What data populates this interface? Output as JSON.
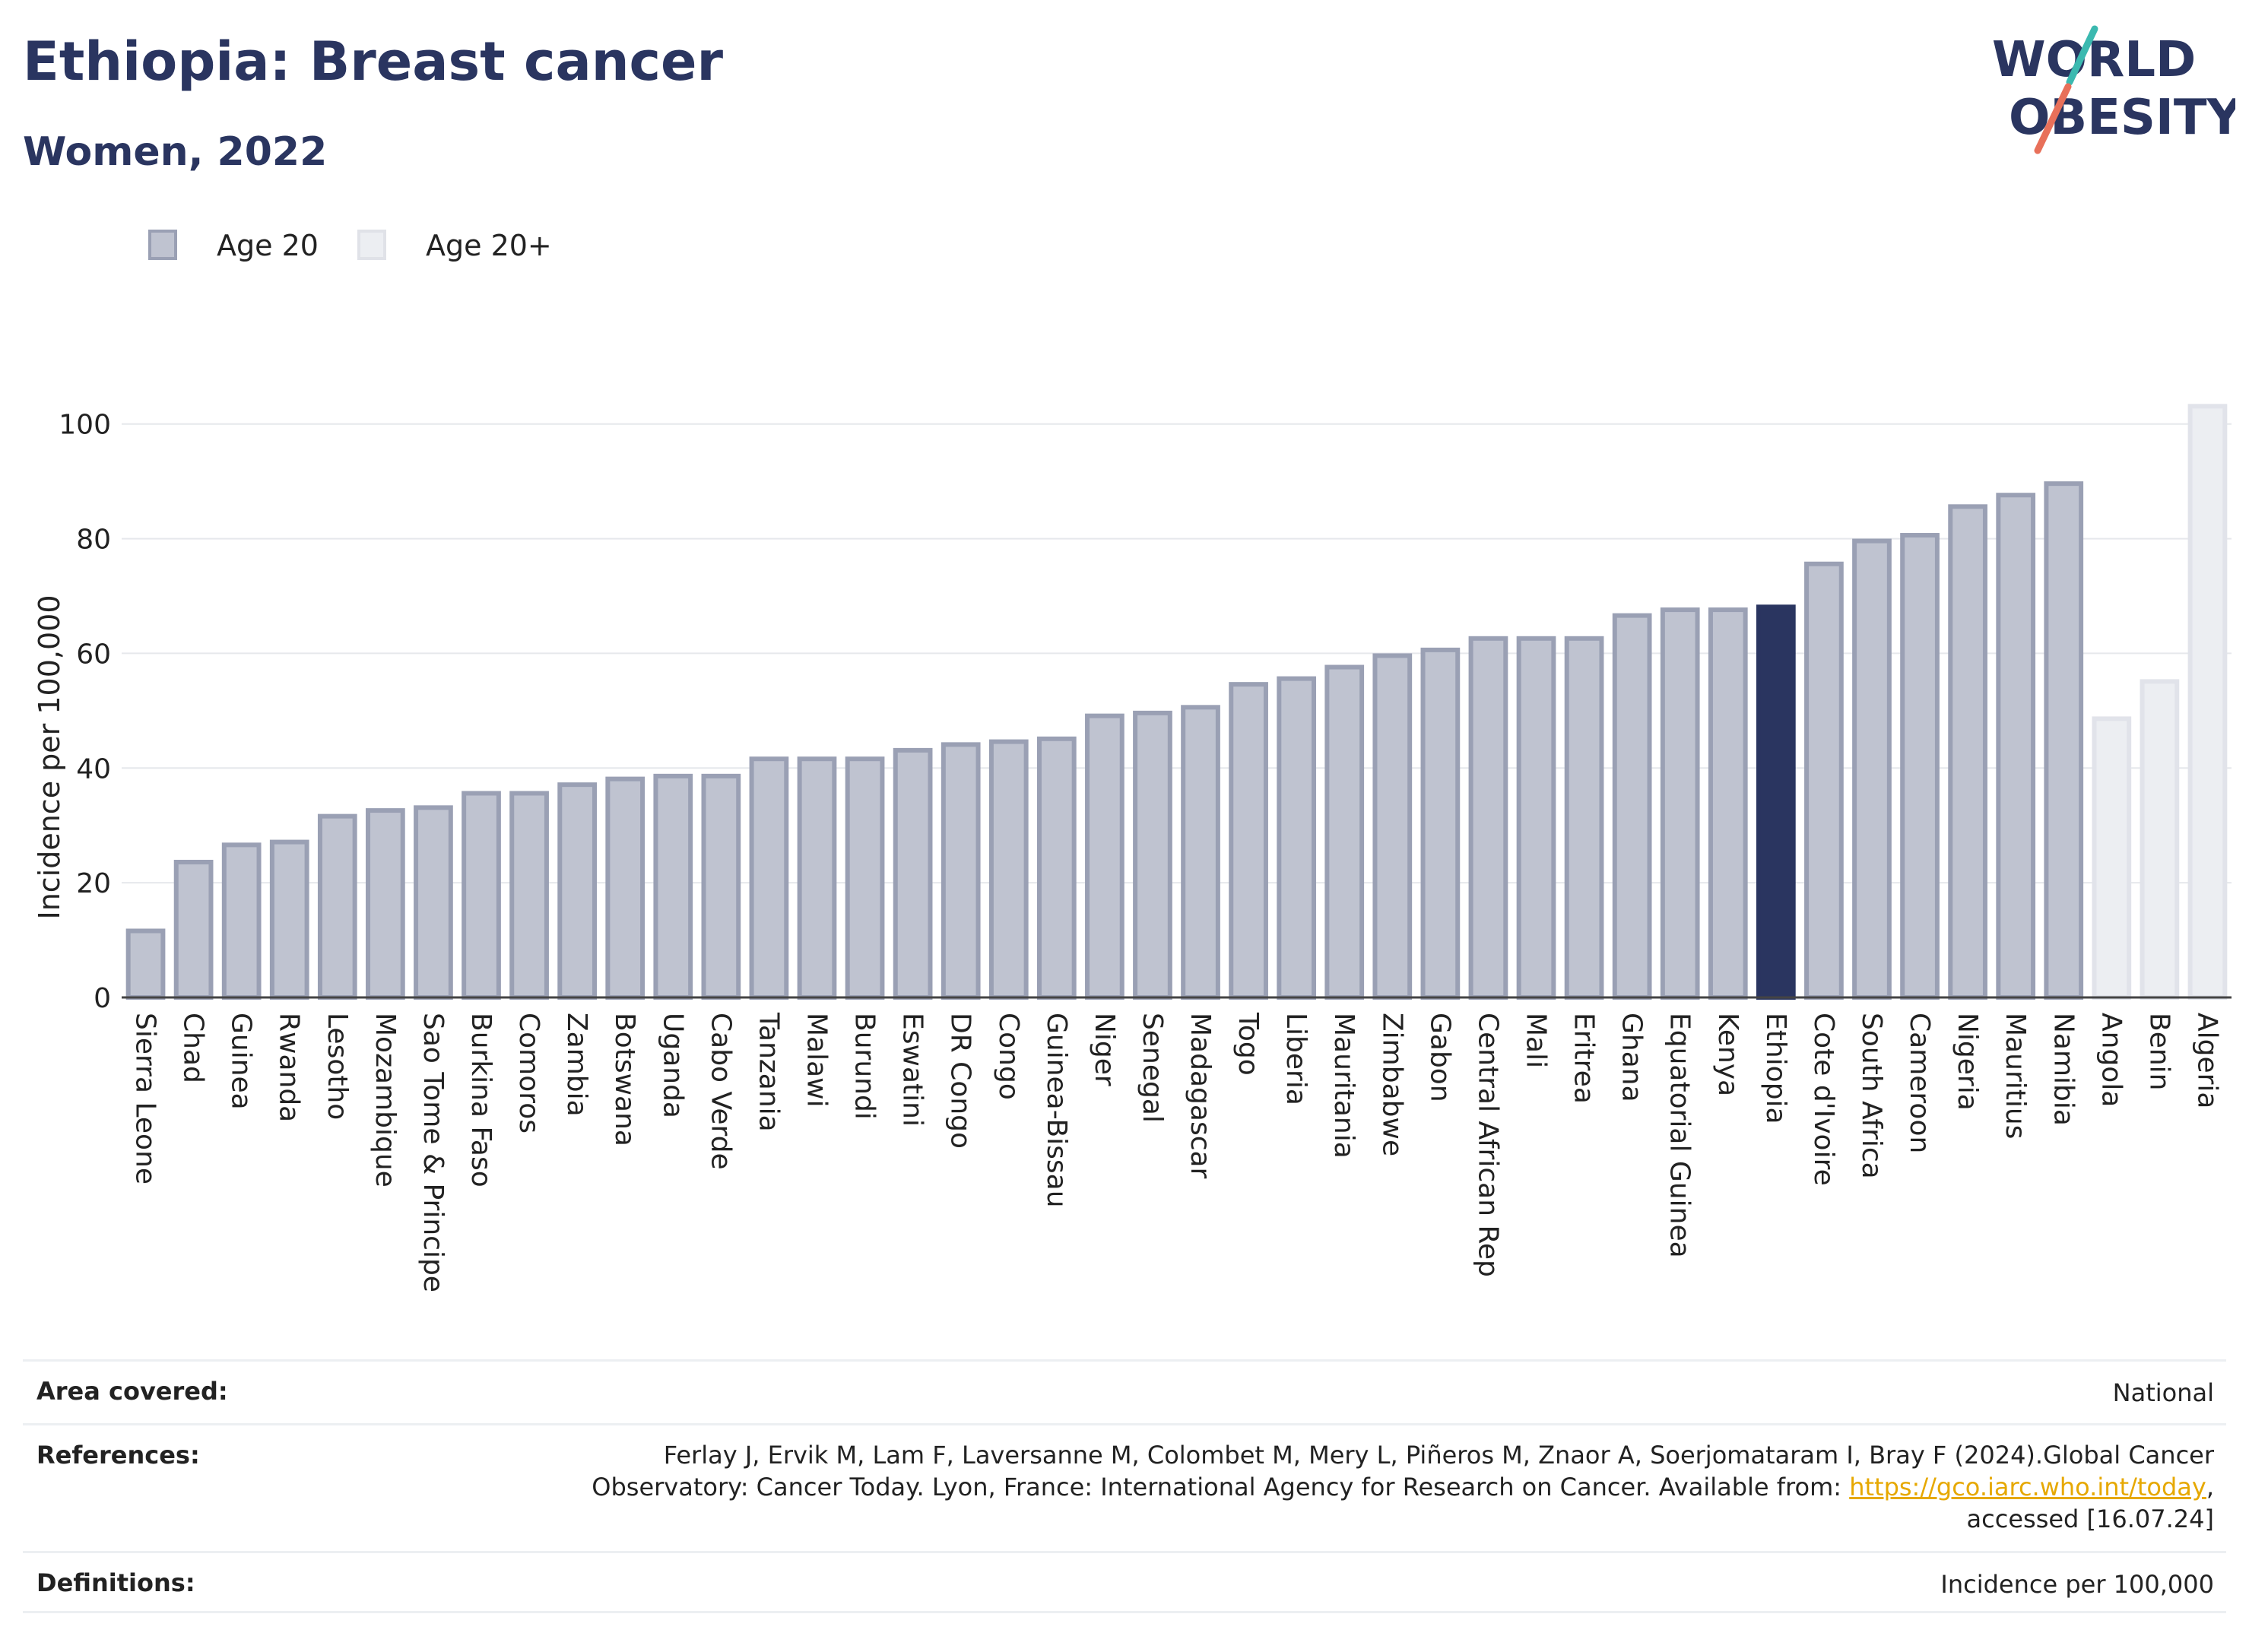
{
  "header": {
    "title": "Ethiopia: Breast cancer",
    "subtitle": "Women, 2022"
  },
  "logo": {
    "line1": "WORLD",
    "line2": "OBESITY",
    "accent_colors": [
      "#3bb9b0",
      "#e8705a"
    ]
  },
  "legend": [
    {
      "label": "Age 20",
      "color": "#bfc3d0",
      "border": "#9aa0b4"
    },
    {
      "label": "Age 20+",
      "color": "#eceef2",
      "border": "#e0e2e8"
    }
  ],
  "chart_data": {
    "type": "bar",
    "ylabel": "Incidence per 100,000",
    "xlabel": "",
    "ylim": [
      0,
      105
    ],
    "yticks": [
      0,
      20,
      40,
      60,
      80,
      100
    ],
    "grid": true,
    "legend_position": "top-left",
    "highlight": "Ethiopia",
    "colors": {
      "age20": "#bfc3d0",
      "age20_border": "#9aa0b4",
      "age20plus": "#eceef2",
      "age20plus_border": "#e1e3ea",
      "highlight": "#2a3560"
    },
    "categories": [
      "Sierra Leone",
      "Chad",
      "Guinea",
      "Rwanda",
      "Lesotho",
      "Mozambique",
      "Sao Tome & Principe",
      "Burkina Faso",
      "Comoros",
      "Zambia",
      "Botswana",
      "Uganda",
      "Cabo Verde",
      "Tanzania",
      "Malawi",
      "Burundi",
      "Eswatini",
      "DR Congo",
      "Congo",
      "Guinea-Bissau",
      "Niger",
      "Senegal",
      "Madagascar",
      "Togo",
      "Liberia",
      "Mauritania",
      "Zimbabwe",
      "Gabon",
      "Central African Rep",
      "Mali",
      "Eritrea",
      "Ghana",
      "Equatorial Guinea",
      "Kenya",
      "Ethiopia",
      "Cote d'Ivoire",
      "South Africa",
      "Cameroon",
      "Nigeria",
      "Mauritius",
      "Namibia",
      "Angola",
      "Benin",
      "Algeria"
    ],
    "series": [
      {
        "name": "Age 20",
        "values": [
          12,
          24,
          27,
          27.5,
          32,
          33,
          33.5,
          36,
          36,
          37.5,
          38.5,
          39,
          39,
          42,
          42,
          42,
          43.5,
          44.5,
          45,
          45.5,
          49.5,
          50,
          51,
          55,
          56,
          58,
          60,
          61,
          63,
          63,
          63,
          67,
          68,
          68,
          68.5,
          76,
          80,
          81,
          86,
          88,
          90,
          null,
          null,
          null
        ]
      },
      {
        "name": "Age 20+",
        "values": [
          null,
          null,
          null,
          null,
          null,
          null,
          null,
          null,
          null,
          null,
          null,
          null,
          null,
          null,
          null,
          null,
          null,
          null,
          null,
          null,
          null,
          null,
          null,
          null,
          null,
          null,
          null,
          null,
          null,
          null,
          null,
          null,
          null,
          null,
          null,
          null,
          null,
          null,
          null,
          null,
          null,
          49,
          55.5,
          103.5
        ]
      }
    ]
  },
  "footer": {
    "area_label": "Area covered:",
    "area_value": "National",
    "references_label": "References:",
    "references_line1": "Ferlay J, Ervik M, Lam F, Laversanne M, Colombet M, Mery L, Piñeros M, Znaor A, Soerjomataram I, Bray F (2024).Global Cancer",
    "references_line2_prefix": "Observatory: Cancer Today. Lyon, France: International Agency for Research on Cancer. Available from: ",
    "references_link": "https://gco.iarc.who.int/today",
    "references_line2_suffix": ",",
    "references_line3": "accessed [16.07.24]",
    "definitions_label": "Definitions:",
    "definitions_value": "Incidence per 100,000"
  }
}
